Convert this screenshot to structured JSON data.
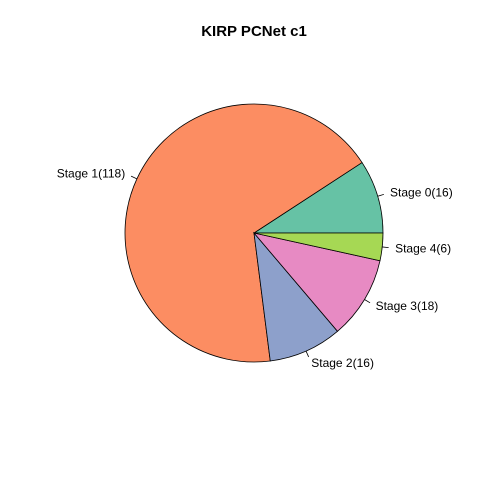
{
  "chart_data": {
    "type": "pie",
    "title": "KIRP PCNet c1",
    "slices": [
      {
        "label": "Stage 0(16)",
        "value": 16,
        "color": "#66C2A5"
      },
      {
        "label": "Stage 1(118)",
        "value": 118,
        "color": "#FC8D62"
      },
      {
        "label": "Stage 2(16)",
        "value": 16,
        "color": "#8DA0CB"
      },
      {
        "label": "Stage 3(18)",
        "value": 18,
        "color": "#E78AC3"
      },
      {
        "label": "Stage 4(6)",
        "value": 6,
        "color": "#A6D854"
      }
    ]
  }
}
